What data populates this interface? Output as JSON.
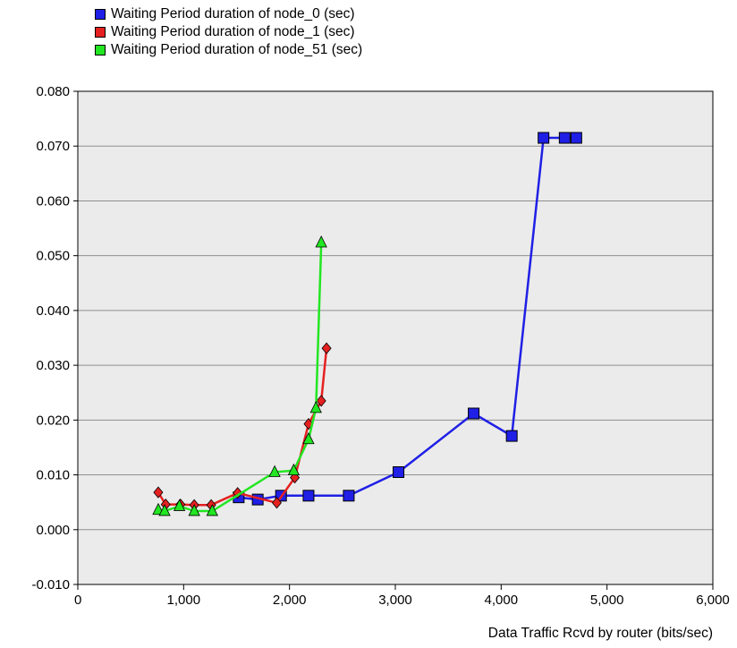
{
  "chart_data": {
    "type": "line",
    "xlabel": "Data Traffic Rcvd by router (bits/sec)",
    "ylabel": "",
    "xlim": [
      0,
      6000
    ],
    "ylim": [
      -0.01,
      0.08
    ],
    "grid": true,
    "legend_position": "top-left",
    "background_color": "#ebebeb",
    "x_tick_labels": [
      "0",
      "1,000",
      "2,000",
      "3,000",
      "4,000",
      "5,000",
      "6,000"
    ],
    "x_ticks": [
      0,
      1000,
      2000,
      3000,
      4000,
      5000,
      6000
    ],
    "y_tick_labels": [
      "-0.010",
      "0.000",
      "0.010",
      "0.020",
      "0.030",
      "0.040",
      "0.050",
      "0.060",
      "0.070",
      "0.080"
    ],
    "y_ticks": [
      -0.01,
      0.0,
      0.01,
      0.02,
      0.03,
      0.04,
      0.05,
      0.06,
      0.07,
      0.08
    ],
    "series": [
      {
        "name": "Waiting Period duration of node_0 (sec)",
        "color": "#1f1fe6",
        "marker": "square",
        "points": [
          [
            1520,
            0.0059
          ],
          [
            1700,
            0.0055
          ],
          [
            1920,
            0.0062
          ],
          [
            2180,
            0.0062
          ],
          [
            2560,
            0.0062
          ],
          [
            3030,
            0.0105
          ],
          [
            3740,
            0.0212
          ],
          [
            4100,
            0.0171
          ],
          [
            4400,
            0.0715
          ],
          [
            4600,
            0.0715
          ],
          [
            4710,
            0.0715
          ]
        ]
      },
      {
        "name": "Waiting Period duration of node_1 (sec)",
        "color": "#e52020",
        "marker": "diamond",
        "points": [
          [
            760,
            0.0068
          ],
          [
            830,
            0.0046
          ],
          [
            970,
            0.0046
          ],
          [
            1100,
            0.0045
          ],
          [
            1260,
            0.0045
          ],
          [
            1510,
            0.0067
          ],
          [
            1880,
            0.0049
          ],
          [
            2050,
            0.0095
          ],
          [
            2180,
            0.0193
          ],
          [
            2300,
            0.0235
          ],
          [
            2350,
            0.0331
          ]
        ]
      },
      {
        "name": "Waiting Period duration of node_51 (sec)",
        "color": "#22e622",
        "marker": "triangle",
        "points": [
          [
            760,
            0.0036
          ],
          [
            820,
            0.0034
          ],
          [
            960,
            0.0043
          ],
          [
            1100,
            0.0034
          ],
          [
            1270,
            0.0034
          ],
          [
            1860,
            0.0105
          ],
          [
            2040,
            0.0108
          ],
          [
            2180,
            0.0165
          ],
          [
            2250,
            0.0222
          ],
          [
            2300,
            0.0524
          ]
        ]
      }
    ]
  }
}
